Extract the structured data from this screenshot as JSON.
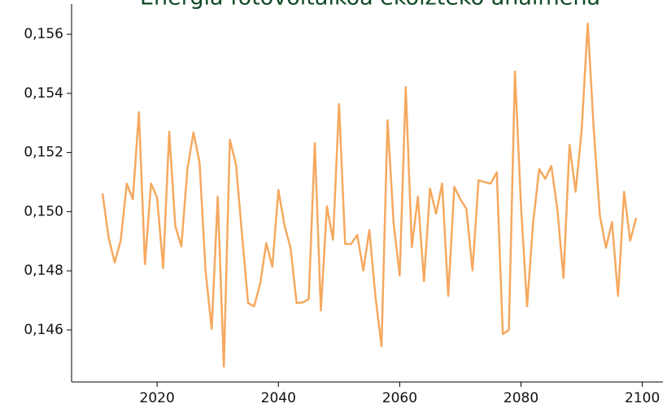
{
  "chart_data": {
    "type": "line",
    "title": "Energia fotovoltaikoa ekoizteko ahalmena",
    "x": [
      2011,
      2012,
      2013,
      2014,
      2015,
      2016,
      2017,
      2018,
      2019,
      2020,
      2021,
      2022,
      2023,
      2024,
      2025,
      2026,
      2027,
      2028,
      2029,
      2030,
      2031,
      2032,
      2033,
      2034,
      2035,
      2036,
      2037,
      2038,
      2039,
      2040,
      2041,
      2042,
      2043,
      2044,
      2045,
      2046,
      2047,
      2048,
      2049,
      2050,
      2051,
      2052,
      2053,
      2054,
      2055,
      2056,
      2057,
      2058,
      2059,
      2060,
      2061,
      2062,
      2063,
      2064,
      2065,
      2066,
      2067,
      2068,
      2069,
      2070,
      2071,
      2072,
      2073,
      2074,
      2075,
      2076,
      2077,
      2078,
      2079,
      2080,
      2081,
      2082,
      2083,
      2084,
      2085,
      2086,
      2087,
      2088,
      2089,
      2090,
      2091,
      2092,
      2093,
      2094,
      2095,
      2096,
      2097,
      2098,
      2099
    ],
    "series": [
      {
        "color": "#f5a95f",
        "values": [
          0.15062,
          0.14913,
          0.14828,
          0.14902,
          0.15095,
          0.15042,
          0.15336,
          0.14823,
          0.15095,
          0.15048,
          0.14809,
          0.1527,
          0.14952,
          0.14883,
          0.15144,
          0.15268,
          0.15166,
          0.14798,
          0.14603,
          0.15051,
          0.14476,
          0.15243,
          0.1516,
          0.14924,
          0.14691,
          0.1468,
          0.14757,
          0.14894,
          0.14814,
          0.15073,
          0.14954,
          0.14878,
          0.14691,
          0.14693,
          0.14704,
          0.15232,
          0.14666,
          0.15018,
          0.14905,
          0.15364,
          0.14891,
          0.14891,
          0.14921,
          0.14801,
          0.14938,
          0.14713,
          0.14545,
          0.15309,
          0.1496,
          0.14784,
          0.15421,
          0.1488,
          0.15051,
          0.14765,
          0.15078,
          0.14993,
          0.15095,
          0.14715,
          0.15084,
          0.15042,
          0.15009,
          0.14801,
          0.15106,
          0.151,
          0.15095,
          0.15133,
          0.14586,
          0.146,
          0.15474,
          0.15018,
          0.1468,
          0.14963,
          0.15144,
          0.15111,
          0.15155,
          0.15007,
          0.14776,
          0.15226,
          0.15067,
          0.15276,
          0.15636,
          0.15276,
          0.14987,
          0.14878,
          0.14965,
          0.14715,
          0.15067,
          0.14902,
          0.14979
        ]
      }
    ],
    "xlim": [
      2005.9,
      2103.4
    ],
    "xticks": [
      2020,
      2040,
      2060,
      2080,
      2100
    ],
    "ylim": [
      0.14424,
      0.15702
    ],
    "yticks": [
      {
        "value": 0.146,
        "label": "0,146"
      },
      {
        "value": 0.148,
        "label": "0,148"
      },
      {
        "value": 0.15,
        "label": "0,150"
      },
      {
        "value": 0.152,
        "label": "0,152"
      },
      {
        "value": 0.154,
        "label": "0,154"
      },
      {
        "value": 0.156,
        "label": "0,156"
      }
    ],
    "grid": false
  }
}
